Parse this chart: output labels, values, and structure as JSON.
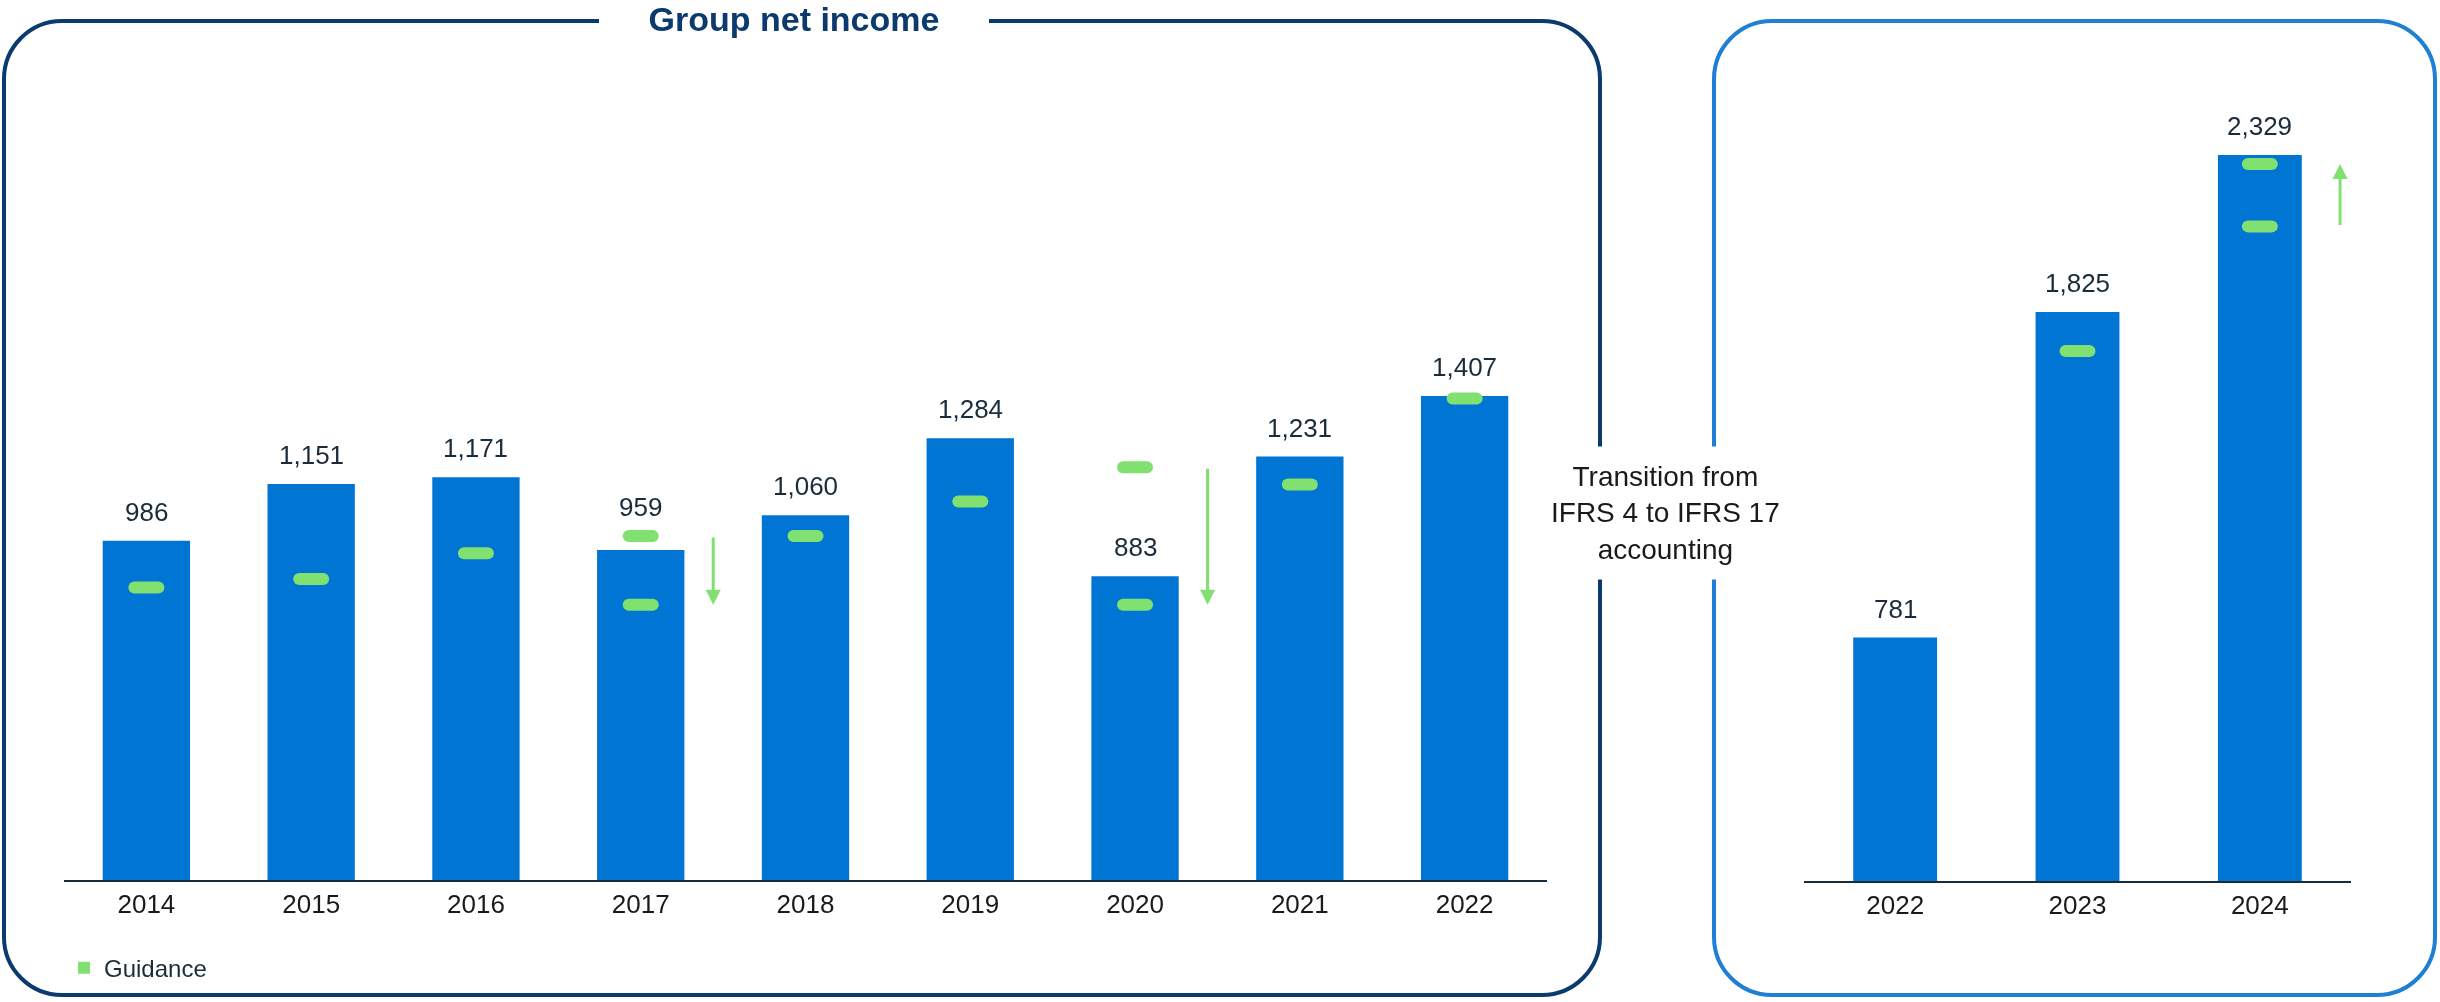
{
  "chart_data": [
    {
      "type": "bar",
      "title": "Group net income",
      "categories": [
        "2014",
        "2015",
        "2016",
        "2017",
        "2018",
        "2019",
        "2020",
        "2021",
        "2022"
      ],
      "legend": "bottom left",
      "annotations": [
        "Transition from\nIFRS 4 to IFRS 17\naccounting"
      ],
      "series": [
        {
          "color": "#0075d4",
          "values": [
            986,
            1151,
            1171,
            959,
            1060,
            1284,
            883,
            1231,
            1407
          ],
          "value_labels": [
            "986",
            "1,151",
            "1,171",
            "959",
            "1,060",
            "1,284",
            "883",
            "1,231",
            "1,407"
          ]
        },
        {
          "type": "scatter",
          "name": "Guidance",
          "color": "#80e070",
          "values": [
            850,
            875,
            950,
            1000,
            1000,
            1100,
            1200,
            1150,
            1400
          ]
        },
        {
          "type": "scatter",
          "color": "#80e070",
          "values": [
            null,
            null,
            null,
            800,
            null,
            null,
            800,
            null,
            null
          ]
        }
      ]
    },
    {
      "type": "bar",
      "categories": [
        "2022",
        "2023",
        "2024"
      ],
      "series": [
        {
          "color": "#0075d4",
          "values": [
            781,
            1825,
            2329
          ],
          "value_labels": [
            "781",
            "1,825",
            "2,329"
          ]
        },
        {
          "type": "scatter",
          "color": "#80e070",
          "values": [
            null,
            1700,
            2100
          ]
        },
        {
          "type": "scatter",
          "color": "#80e070",
          "values": [
            null,
            null,
            2300
          ]
        }
      ]
    }
  ]
}
